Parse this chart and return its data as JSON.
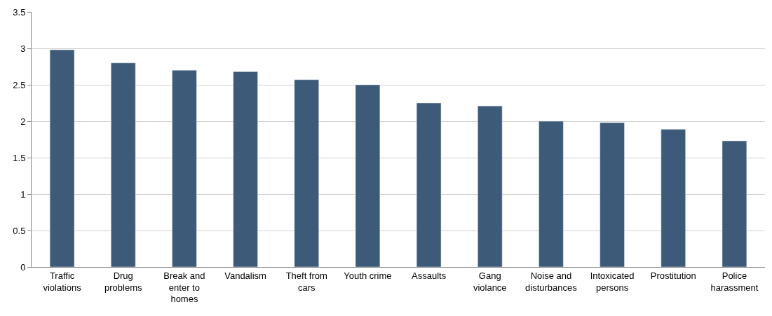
{
  "chart_data": {
    "type": "bar",
    "categories": [
      "Traffic violations",
      "Drug problems",
      "Break and enter to homes",
      "Vandalism",
      "Theft from cars",
      "Youth crime",
      "Assaults",
      "Gang violance",
      "Noise and disturbances",
      "Intoxicated persons",
      "Prostitution",
      "Police harassment"
    ],
    "values": [
      2.98,
      2.8,
      2.7,
      2.68,
      2.57,
      2.5,
      2.25,
      2.21,
      2.0,
      1.98,
      1.89,
      1.73
    ],
    "color": "#3d5a78",
    "ylim": [
      0,
      3.5
    ],
    "yticks": [
      0,
      0.5,
      1,
      1.5,
      2,
      2.5,
      3,
      3.5
    ],
    "grid": "y"
  }
}
